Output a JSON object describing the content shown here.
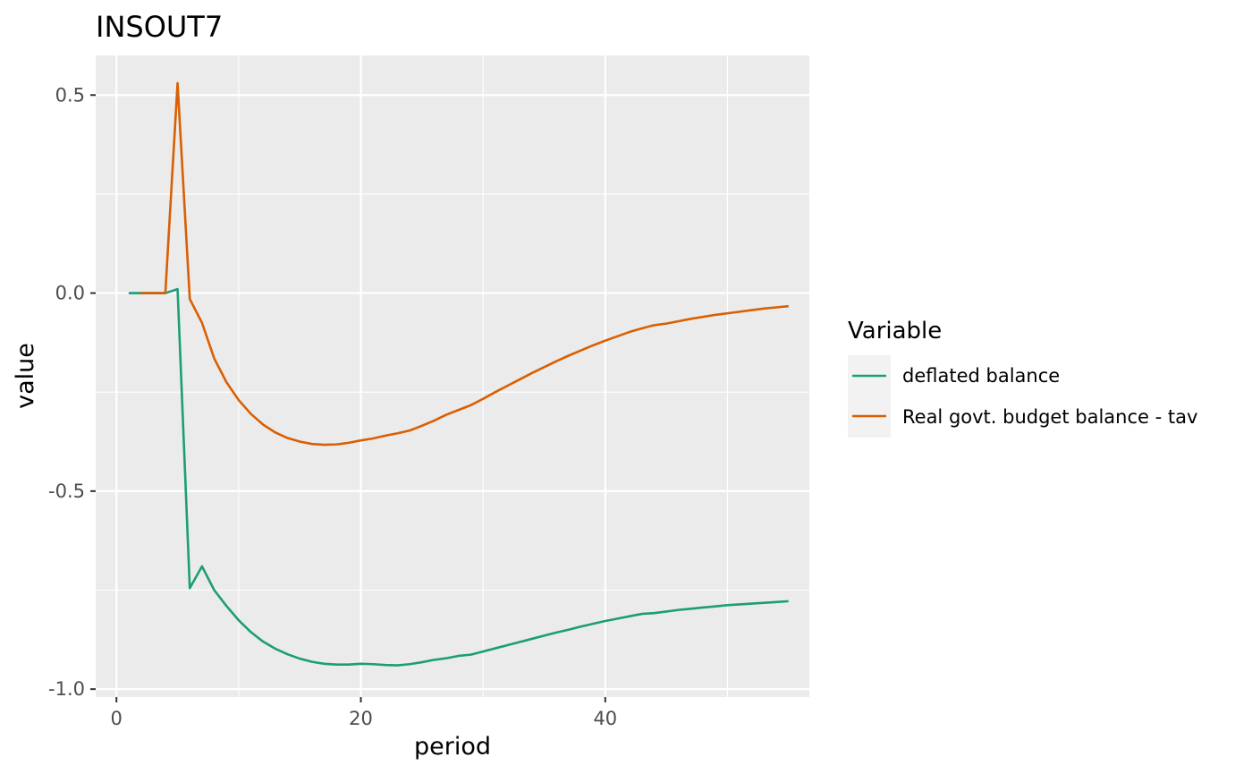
{
  "chart_data": {
    "type": "line",
    "title": "INSOUT7",
    "xlabel": "period",
    "ylabel": "value",
    "xlim": [
      -1.7,
      56.7
    ],
    "ylim": [
      -1.02,
      0.6
    ],
    "x_ticks": [
      0,
      20,
      40
    ],
    "x_tick_labels": [
      "0",
      "20",
      "40"
    ],
    "y_ticks": [
      0.5,
      0.0,
      -0.5,
      -1.0
    ],
    "y_tick_labels": [
      "0.5",
      "0.0",
      "-0.5",
      "-1.0"
    ],
    "grid": true,
    "legend": {
      "title": "Variable",
      "position": "right"
    },
    "series": [
      {
        "name": "deflated balance",
        "color": "#1b9e77",
        "x": [
          1,
          2,
          3,
          4,
          5,
          6,
          7,
          8,
          9,
          10,
          11,
          12,
          13,
          14,
          15,
          16,
          17,
          18,
          19,
          20,
          21,
          22,
          23,
          24,
          25,
          26,
          27,
          28,
          29,
          30,
          31,
          32,
          33,
          34,
          35,
          36,
          37,
          38,
          39,
          40,
          41,
          42,
          43,
          44,
          45,
          46,
          47,
          48,
          49,
          50,
          51,
          52,
          53,
          54,
          55
        ],
        "values": [
          0.0,
          0.0,
          0.0,
          0.0,
          0.01,
          -0.745,
          -0.69,
          -0.75,
          -0.79,
          -0.826,
          -0.856,
          -0.88,
          -0.898,
          -0.912,
          -0.923,
          -0.931,
          -0.936,
          -0.938,
          -0.938,
          -0.936,
          -0.937,
          -0.939,
          -0.94,
          -0.937,
          -0.932,
          -0.926,
          -0.922,
          -0.916,
          -0.913,
          -0.905,
          -0.897,
          -0.889,
          -0.881,
          -0.873,
          -0.865,
          -0.857,
          -0.85,
          -0.842,
          -0.835,
          -0.828,
          -0.822,
          -0.816,
          -0.81,
          -0.808,
          -0.804,
          -0.8,
          -0.797,
          -0.794,
          -0.791,
          -0.788,
          -0.786,
          -0.784,
          -0.782,
          -0.78,
          -0.778
        ]
      },
      {
        "name": "Real govt. budget balance - tav",
        "color": "#d95f02",
        "x": [
          2,
          3,
          4,
          5,
          6,
          7,
          8,
          9,
          10,
          11,
          12,
          13,
          14,
          15,
          16,
          17,
          18,
          19,
          20,
          21,
          22,
          23,
          24,
          25,
          26,
          27,
          28,
          29,
          30,
          31,
          32,
          33,
          34,
          35,
          36,
          37,
          38,
          39,
          40,
          41,
          42,
          43,
          44,
          45,
          46,
          47,
          48,
          49,
          50,
          51,
          52,
          53,
          54,
          55
        ],
        "values": [
          0.0,
          0.0,
          0.0,
          0.53,
          -0.015,
          -0.075,
          -0.165,
          -0.225,
          -0.27,
          -0.305,
          -0.332,
          -0.352,
          -0.366,
          -0.375,
          -0.381,
          -0.383,
          -0.382,
          -0.378,
          -0.372,
          -0.367,
          -0.36,
          -0.354,
          -0.347,
          -0.335,
          -0.322,
          -0.307,
          -0.295,
          -0.283,
          -0.267,
          -0.25,
          -0.234,
          -0.218,
          -0.202,
          -0.187,
          -0.172,
          -0.158,
          -0.145,
          -0.132,
          -0.12,
          -0.109,
          -0.098,
          -0.089,
          -0.081,
          -0.077,
          -0.071,
          -0.065,
          -0.06,
          -0.055,
          -0.051,
          -0.047,
          -0.043,
          -0.039,
          -0.036,
          -0.033
        ]
      }
    ]
  }
}
